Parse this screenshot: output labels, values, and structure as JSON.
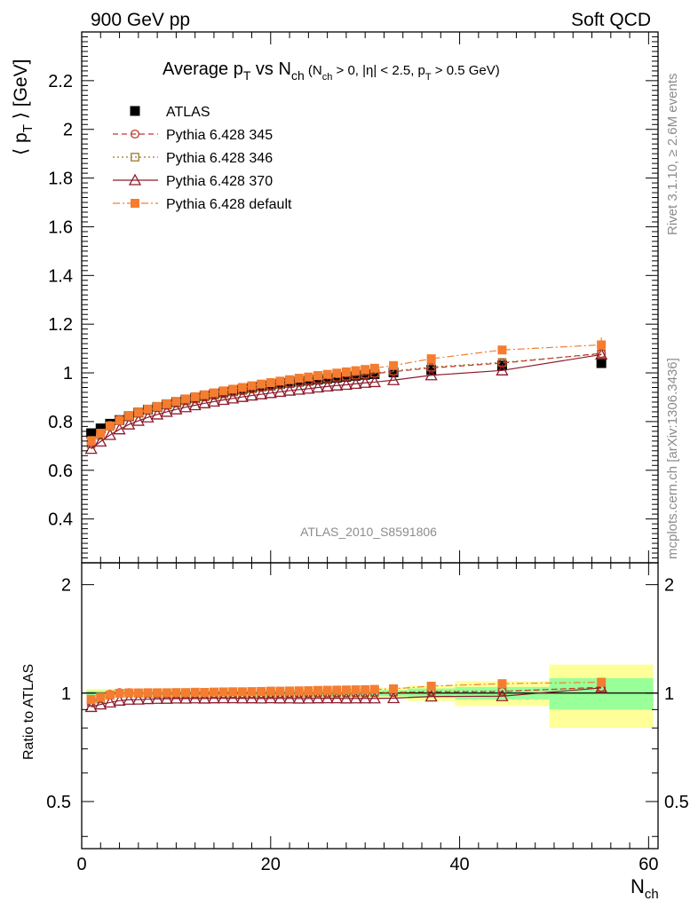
{
  "header": {
    "left_label": "900 GeV pp",
    "right_label": "Soft QCD"
  },
  "side_labels": {
    "rivet": "Rivet 3.1.10, ≥ 2.6M events",
    "mcplots": "mcplots.cern.ch [arXiv:1306.3436]"
  },
  "chart_data": {
    "type": "scatter",
    "title": {
      "main": "Average p",
      "main_sub": "T",
      "vs": " vs N",
      "vs_sub": "ch",
      "cond_open": " (N",
      "cond_sub1": "ch",
      "cond_mid": " > 0, |η| < 2.5, p",
      "cond_sub2": "T",
      "cond_end": " > 0.5 GeV)"
    },
    "analysis_id": "ATLAS_2010_S8591806",
    "xlabel": {
      "main": "N",
      "sub": "ch"
    },
    "ylabel": {
      "pre": "⟨ p",
      "sub": "T",
      "post": " ⟩ [GeV]"
    },
    "ratio_ylabel": "Ratio to ATLAS",
    "xlim": [
      0,
      61
    ],
    "ylim": [
      0.22,
      2.4
    ],
    "ratio_ylim": [
      0.37,
      2.3
    ],
    "x_ticks": [
      "0",
      "20",
      "40",
      "60"
    ],
    "y_ticks": [
      "0.4",
      "0.6",
      "0.8",
      "1",
      "1.2",
      "1.4",
      "1.6",
      "1.8",
      "2",
      "2.2"
    ],
    "ratio_ticks": [
      "0.5",
      "1",
      "2"
    ],
    "legend_position": "top-left",
    "legend": [
      {
        "label": "ATLAS"
      },
      {
        "label": "Pythia 6.428 345"
      },
      {
        "label": "Pythia 6.428 346"
      },
      {
        "label": "Pythia 6.428 370"
      },
      {
        "label": "Pythia 6.428 default"
      }
    ],
    "x": [
      1,
      2,
      3,
      4,
      5,
      6,
      7,
      8,
      9,
      10,
      11,
      12,
      13,
      14,
      15,
      16,
      17,
      18,
      19,
      20,
      21,
      22,
      23,
      24,
      25,
      26,
      27,
      28,
      29,
      30,
      31,
      33,
      37,
      44.5,
      55
    ],
    "bin_edges": [
      0.5,
      1.5,
      2.5,
      3.5,
      4.5,
      5.5,
      6.5,
      7.5,
      8.5,
      9.5,
      10.5,
      11.5,
      12.5,
      13.5,
      14.5,
      15.5,
      16.5,
      17.5,
      18.5,
      19.5,
      20.5,
      21.5,
      22.5,
      23.5,
      24.5,
      25.5,
      26.5,
      27.5,
      28.5,
      29.5,
      30.5,
      31.5,
      34.5,
      39.5,
      49.5,
      60.5
    ],
    "series": [
      {
        "name": "ATLAS",
        "color": "#000000",
        "marker": "filled-square",
        "line": "none",
        "values": [
          0.752,
          0.772,
          0.791,
          0.806,
          0.822,
          0.837,
          0.849,
          0.86,
          0.871,
          0.88,
          0.89,
          0.897,
          0.906,
          0.912,
          0.919,
          0.925,
          0.932,
          0.938,
          0.944,
          0.948,
          0.954,
          0.959,
          0.964,
          0.968,
          0.972,
          0.976,
          0.98,
          0.984,
          0.988,
          0.992,
          0.995,
          1.002,
          1.012,
          1.03,
          1.04
        ]
      },
      {
        "name": "Pythia 6.428 345",
        "color": "#c0392b",
        "marker": "open-circle",
        "line": "dashed",
        "values": [
          0.712,
          0.748,
          0.785,
          0.808,
          0.824,
          0.837,
          0.848,
          0.858,
          0.867,
          0.876,
          0.885,
          0.893,
          0.901,
          0.908,
          0.914,
          0.921,
          0.927,
          0.934,
          0.94,
          0.945,
          0.951,
          0.956,
          0.961,
          0.966,
          0.971,
          0.975,
          0.98,
          0.984,
          0.989,
          0.992,
          0.997,
          1.005,
          1.02,
          1.04,
          1.08
        ]
      },
      {
        "name": "Pythia 6.428 346",
        "color": "#9c7a2a",
        "marker": "open-square",
        "line": "dotted",
        "values": [
          0.708,
          0.743,
          0.78,
          0.805,
          0.822,
          0.836,
          0.847,
          0.857,
          0.867,
          0.876,
          0.885,
          0.893,
          0.901,
          0.908,
          0.915,
          0.922,
          0.928,
          0.935,
          0.941,
          0.947,
          0.952,
          0.958,
          0.963,
          0.968,
          0.973,
          0.977,
          0.982,
          0.986,
          0.991,
          0.995,
          0.999,
          1.008,
          1.024,
          1.043,
          1.078
        ]
      },
      {
        "name": "Pythia 6.428 370",
        "color": "#8e1b2c",
        "marker": "open-triangle",
        "line": "solid",
        "values": [
          0.688,
          0.718,
          0.745,
          0.768,
          0.788,
          0.803,
          0.817,
          0.829,
          0.84,
          0.85,
          0.859,
          0.867,
          0.875,
          0.882,
          0.889,
          0.895,
          0.901,
          0.907,
          0.912,
          0.917,
          0.922,
          0.927,
          0.931,
          0.935,
          0.94,
          0.944,
          0.948,
          0.951,
          0.955,
          0.959,
          0.962,
          0.97,
          0.99,
          1.01,
          1.075
        ]
      },
      {
        "name": "Pythia 6.428 default",
        "color": "#f47d31",
        "marker": "filled-square",
        "line": "dashdot",
        "values": [
          0.722,
          0.752,
          0.782,
          0.805,
          0.823,
          0.838,
          0.851,
          0.862,
          0.873,
          0.883,
          0.893,
          0.902,
          0.91,
          0.918,
          0.926,
          0.933,
          0.94,
          0.947,
          0.954,
          0.96,
          0.966,
          0.972,
          0.978,
          0.983,
          0.989,
          0.994,
          0.999,
          1.004,
          1.009,
          1.014,
          1.019,
          1.03,
          1.058,
          1.094,
          1.115
        ],
        "errors": [
          0,
          0,
          0,
          0,
          0,
          0,
          0,
          0,
          0,
          0,
          0,
          0,
          0,
          0,
          0,
          0,
          0,
          0,
          0,
          0,
          0,
          0,
          0,
          0,
          0,
          0,
          0,
          0,
          0,
          0,
          0.008,
          0.008,
          0.01,
          0.012,
          0.03
        ]
      }
    ],
    "ratio_bands": {
      "stat_color": "#99ff99",
      "total_color": "#ffff99",
      "stat_half": [
        0.015,
        0.015,
        0.015,
        0.015,
        0.015,
        0.015,
        0.015,
        0.015,
        0.015,
        0.015,
        0.015,
        0.015,
        0.015,
        0.015,
        0.015,
        0.015,
        0.015,
        0.015,
        0.015,
        0.015,
        0.015,
        0.015,
        0.015,
        0.015,
        0.015,
        0.015,
        0.015,
        0.015,
        0.015,
        0.015,
        0.015,
        0.02,
        0.03,
        0.04,
        0.1
      ],
      "total_half": [
        0.028,
        0.028,
        0.028,
        0.028,
        0.028,
        0.028,
        0.028,
        0.028,
        0.028,
        0.028,
        0.028,
        0.028,
        0.028,
        0.028,
        0.028,
        0.028,
        0.028,
        0.028,
        0.028,
        0.028,
        0.028,
        0.028,
        0.028,
        0.028,
        0.028,
        0.028,
        0.028,
        0.028,
        0.028,
        0.028,
        0.028,
        0.035,
        0.05,
        0.08,
        0.2
      ]
    }
  }
}
